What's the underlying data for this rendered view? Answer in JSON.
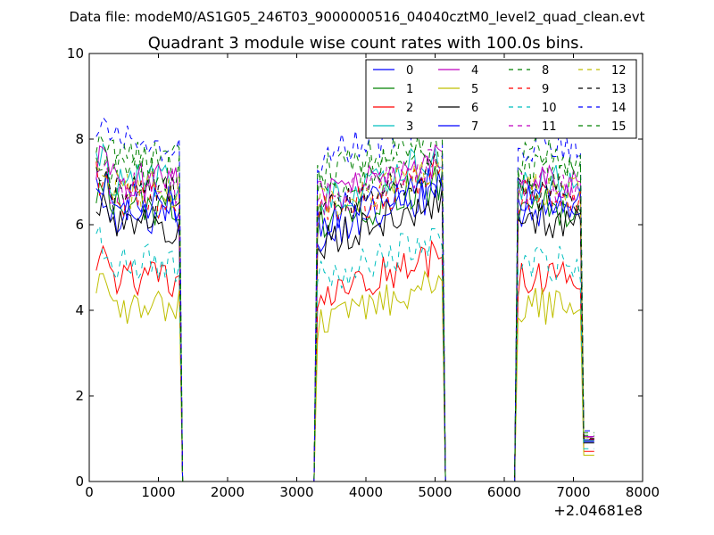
{
  "chart_data": {
    "type": "line",
    "suptitle": "Data file: modeM0/AS1G05_246T03_9000000516_04040cztM0_level2_quad_clean.evt",
    "title": "Quadrant 3 module wise count rates with 100.0s bins.",
    "xlabel": "",
    "ylabel": "",
    "x_offset_label": "+2.04681e8",
    "xlim": [
      0,
      8000
    ],
    "ylim": [
      0,
      10
    ],
    "xticks": [
      "0",
      "1000",
      "2000",
      "3000",
      "4000",
      "5000",
      "6000",
      "7000",
      "8000"
    ],
    "yticks": [
      "0",
      "2",
      "4",
      "6",
      "8",
      "10"
    ],
    "legend_position": "upper-right",
    "legend_columns": 4,
    "segments": [
      [
        100,
        1500
      ],
      [
        3300,
        5300
      ],
      [
        6200,
        7300
      ]
    ],
    "series": [
      {
        "name": "0",
        "color": "#0000ff",
        "style": "solid",
        "level": 6.2
      },
      {
        "name": "1",
        "color": "#008000",
        "style": "solid",
        "level": 6.4
      },
      {
        "name": "2",
        "color": "#ff0000",
        "style": "solid",
        "level": 4.7
      },
      {
        "name": "3",
        "color": "#00bfbf",
        "style": "solid",
        "level": 7.0
      },
      {
        "name": "4",
        "color": "#bf00bf",
        "style": "solid",
        "level": 7.0
      },
      {
        "name": "5",
        "color": "#bfbf00",
        "style": "solid",
        "level": 4.1
      },
      {
        "name": "6",
        "color": "#000000",
        "style": "solid",
        "level": 6.0
      },
      {
        "name": "7",
        "color": "#0000ff",
        "style": "solid",
        "level": 6.5
      },
      {
        "name": "8",
        "color": "#008000",
        "style": "dashed",
        "level": 7.2
      },
      {
        "name": "9",
        "color": "#ff0000",
        "style": "dashed",
        "level": 6.6
      },
      {
        "name": "10",
        "color": "#00bfbf",
        "style": "dashed",
        "level": 5.1
      },
      {
        "name": "11",
        "color": "#bf00bf",
        "style": "dashed",
        "level": 6.9
      },
      {
        "name": "12",
        "color": "#bfbf00",
        "style": "dashed",
        "level": 6.8
      },
      {
        "name": "13",
        "color": "#000000",
        "style": "dashed",
        "level": 6.7
      },
      {
        "name": "14",
        "color": "#0000ff",
        "style": "dashed",
        "level": 7.9
      },
      {
        "name": "15",
        "color": "#008000",
        "style": "dashed",
        "level": 7.6
      }
    ]
  }
}
